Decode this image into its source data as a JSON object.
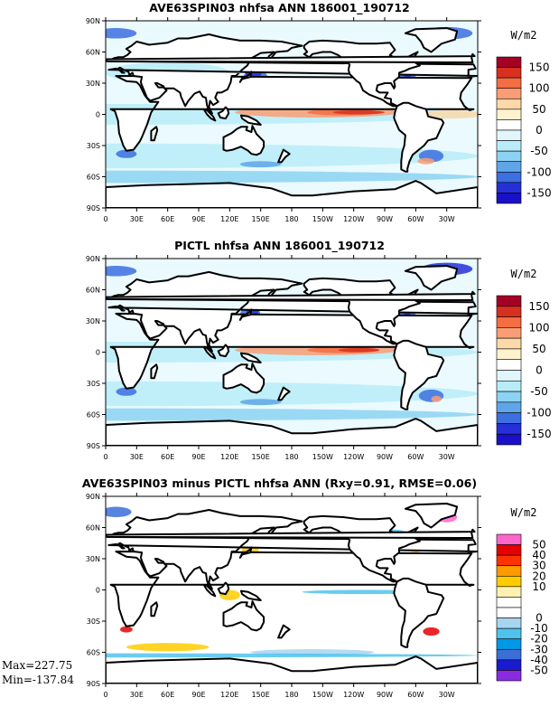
{
  "panels": [
    {
      "title": "AVE63SPIN03 nhfsa ANN 186001_190712",
      "units": "W/m2",
      "legend_labels": [
        "150",
        "100",
        "50",
        "0",
        "-50",
        "-100",
        "-150"
      ],
      "legend_colors": [
        "#a50026",
        "#d7301f",
        "#f46d43",
        "#fb9d74",
        "#fdd8a8",
        "#fff2cf",
        "#ffffff",
        "#e0f6fb",
        "#b8ecf8",
        "#8cd2f2",
        "#5fa6e8",
        "#3c6fe0",
        "#2530d8",
        "#1a10c8"
      ]
    },
    {
      "title": "PICTL nhfsa ANN 186001_190712",
      "units": "W/m2",
      "legend_labels": [
        "150",
        "100",
        "50",
        "0",
        "-50",
        "-100",
        "-150"
      ],
      "legend_colors": [
        "#a50026",
        "#d7301f",
        "#f46d43",
        "#fb9d74",
        "#fdd8a8",
        "#fff2cf",
        "#ffffff",
        "#e0f6fb",
        "#b8ecf8",
        "#8cd2f2",
        "#5fa6e8",
        "#3c6fe0",
        "#2530d8",
        "#1a10c8"
      ]
    },
    {
      "title": "AVE63SPIN03 minus PICTL nhfsa ANN (Rxy=0.91, RMSE=0.06)",
      "units": "W/m2",
      "legend_labels": [
        "50",
        "40",
        "30",
        "20",
        "10",
        "0",
        "-10",
        "-20",
        "-30",
        "-40",
        "-50"
      ],
      "legend_colors": [
        "#ff66cc",
        "#e60000",
        "#ff3300",
        "#ff9900",
        "#ffcc00",
        "#fff2b0",
        "#ffffff",
        "#ffffff",
        "#a8d4f0",
        "#4fc3ee",
        "#0099e6",
        "#3a6fd8",
        "#1a1ad0",
        "#8a2be2"
      ],
      "max_label": "Max=227.75",
      "min_label": "Min=-137.84"
    }
  ],
  "lat_ticks": [
    "90N",
    "60N",
    "30N",
    "0",
    "30S",
    "60S",
    "90S"
  ],
  "lon_ticks": [
    "0",
    "30E",
    "60E",
    "90E",
    "120E",
    "150E",
    "180",
    "150W",
    "120W",
    "90W",
    "60W",
    "30W"
  ]
}
